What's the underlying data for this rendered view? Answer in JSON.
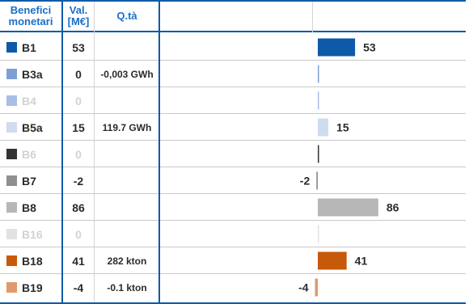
{
  "header": {
    "col_label": "Benefici monetari",
    "col_label_line1": "Benefici",
    "col_label_line2": "monetari",
    "col_value_line1": "Val.",
    "col_value_line2": "[M€]",
    "col_qty": "Q.tà"
  },
  "rows": [
    {
      "id": "B1",
      "value": "53",
      "qty": "",
      "color": "#0f5aa8",
      "muted": false
    },
    {
      "id": "B3a",
      "value": "0",
      "qty": "-0,003 GWh",
      "color": "#7f9fd4",
      "muted": false
    },
    {
      "id": "B4",
      "value": "0",
      "qty": "",
      "color": "#a9bde6",
      "muted": true
    },
    {
      "id": "B5a",
      "value": "15",
      "qty": "119.7 GWh",
      "color": "#cfdcf0",
      "muted": false
    },
    {
      "id": "B6",
      "value": "0",
      "qty": "",
      "color": "#333333",
      "muted": true
    },
    {
      "id": "B7",
      "value": "-2",
      "qty": "",
      "color": "#8f8f8f",
      "muted": false
    },
    {
      "id": "B8",
      "value": "86",
      "qty": "",
      "color": "#b7b7b7",
      "muted": false
    },
    {
      "id": "B16",
      "value": "0",
      "qty": "",
      "color": "#e2e2e2",
      "muted": true
    },
    {
      "id": "B18",
      "value": "41",
      "qty": "282 kton",
      "color": "#c75a0a",
      "muted": false
    },
    {
      "id": "B19",
      "value": "-4",
      "qty": "-0.1 kton",
      "color": "#e09a6b",
      "muted": false
    }
  ],
  "chart_data": {
    "type": "bar",
    "orientation": "horizontal",
    "categories": [
      "B1",
      "B3a",
      "B4",
      "B5a",
      "B6",
      "B7",
      "B8",
      "B16",
      "B18",
      "B19"
    ],
    "values": [
      53,
      0,
      0,
      15,
      0,
      -2,
      86,
      0,
      41,
      -4
    ],
    "colors": [
      "#0f5aa8",
      "#7f9fd4",
      "#a9bde6",
      "#cfdcf0",
      "#333333",
      "#8f8f8f",
      "#b7b7b7",
      "#e2e2e2",
      "#c75a0a",
      "#e09a6b"
    ],
    "data_labels": [
      "53",
      "",
      "",
      "15",
      "",
      "-2",
      "86",
      "",
      "41",
      "-4"
    ],
    "xlim": [
      -4,
      86
    ],
    "grid": false,
    "legend": "none"
  }
}
